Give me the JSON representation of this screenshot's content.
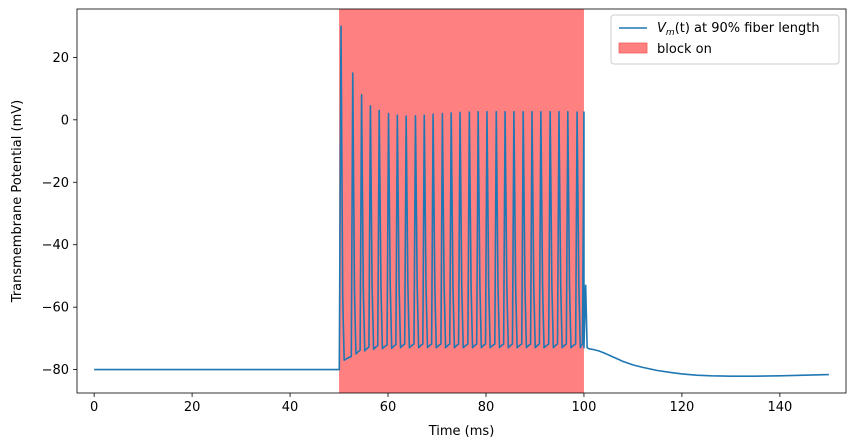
{
  "chart_data": {
    "type": "line",
    "xlabel": "Time (ms)",
    "ylabel": "Transmembrane Potential (mV)",
    "xlim": [
      -3.5,
      153.5
    ],
    "ylim": [
      -87.5,
      35.5
    ],
    "x_ticks": [
      0,
      20,
      40,
      60,
      80,
      100,
      120,
      140
    ],
    "y_ticks": [
      -80,
      -60,
      -40,
      -20,
      0,
      20
    ],
    "grid": false,
    "legend_position": "top-right",
    "shaded_region": {
      "name": "block on",
      "x_start": 50,
      "x_end": 100,
      "color": "#ff8080"
    },
    "series": [
      {
        "name": "V_m(t) at 90% fiber length",
        "name_parts": {
          "v": "V",
          "sub": "m",
          "rest": "(t) at 90% fiber length"
        },
        "color": "#1f77b4",
        "resting_potential": -80,
        "spike_times": [
          50.4,
          52.8,
          54.6,
          56.4,
          58.2,
          60.1,
          61.9,
          63.7,
          65.6,
          67.4,
          69.2,
          71.1,
          72.9,
          74.7,
          76.6,
          78.4,
          80.2,
          82.1,
          83.9,
          85.7,
          87.6,
          89.4,
          91.2,
          93.1,
          94.9,
          96.7,
          98.6,
          100.0
        ],
        "spike_peaks": [
          30,
          15,
          8,
          4.5,
          3,
          2,
          1.5,
          1.2,
          1.3,
          1.5,
          1.8,
          2,
          2.2,
          2.4,
          2.5,
          2.6,
          2.6,
          2.6,
          2.6,
          2.6,
          2.6,
          2.6,
          2.6,
          2.6,
          2.6,
          2.6,
          2.5,
          2.5
        ],
        "spike_troughs": [
          -77,
          -75,
          -74,
          -73.5,
          -73.3,
          -73.2,
          -73,
          -73,
          -73,
          -73,
          -73,
          -73,
          -73,
          -73,
          -73,
          -73,
          -73,
          -73,
          -73,
          -73,
          -73,
          -73,
          -73,
          -73,
          -73,
          -73,
          -73,
          -73
        ],
        "post_block": {
          "x": [
            100,
            101,
            102,
            103,
            104,
            105,
            106,
            107,
            108,
            110,
            112,
            115,
            118,
            120,
            123,
            126,
            130,
            135,
            140,
            145,
            150
          ],
          "y": [
            -73,
            -73.3,
            -73.6,
            -74,
            -74.6,
            -75.3,
            -76,
            -76.7,
            -77.4,
            -78.5,
            -79.3,
            -80.3,
            -81,
            -81.4,
            -81.8,
            -82,
            -82.1,
            -82.1,
            -82,
            -81.8,
            -81.6
          ]
        }
      }
    ]
  }
}
